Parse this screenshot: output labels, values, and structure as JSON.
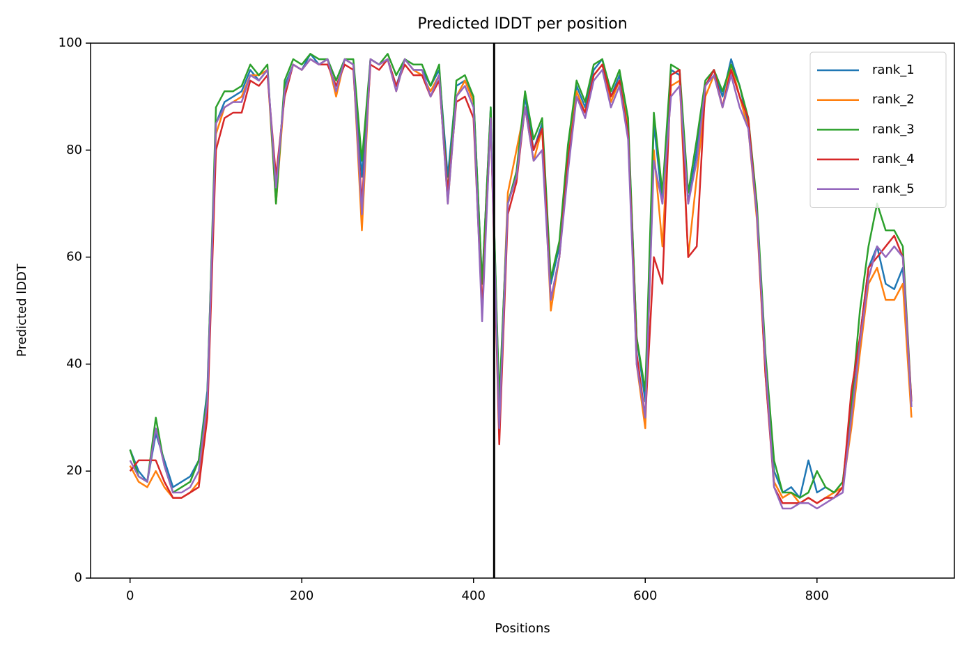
{
  "chart_data": {
    "type": "line",
    "title": "Predicted lDDT per position",
    "xlabel": "Positions",
    "ylabel": "Predicted lDDT",
    "x": [
      0,
      10,
      20,
      30,
      40,
      50,
      60,
      70,
      80,
      90,
      100,
      110,
      120,
      130,
      140,
      150,
      160,
      170,
      180,
      190,
      200,
      210,
      220,
      230,
      240,
      250,
      260,
      270,
      280,
      290,
      300,
      310,
      320,
      330,
      340,
      350,
      360,
      370,
      380,
      390,
      400,
      410,
      420,
      430,
      440,
      450,
      460,
      470,
      480,
      490,
      500,
      510,
      520,
      530,
      540,
      550,
      560,
      570,
      580,
      590,
      600,
      610,
      620,
      630,
      640,
      650,
      660,
      670,
      680,
      690,
      700,
      710,
      720,
      730,
      740,
      750,
      760,
      770,
      780,
      790,
      800,
      810,
      820,
      830,
      840,
      850,
      860,
      870,
      880,
      890,
      900,
      910
    ],
    "series": [
      {
        "name": "rank_1",
        "color": "#1f77b4",
        "values": [
          24,
          20,
          18,
          27,
          22,
          17,
          18,
          19,
          22,
          35,
          85,
          89,
          90,
          91,
          95,
          93,
          95,
          72,
          92,
          96,
          95,
          98,
          96,
          97,
          93,
          97,
          96,
          75,
          97,
          96,
          97,
          92,
          97,
          95,
          95,
          92,
          95,
          75,
          92,
          93,
          90,
          55,
          88,
          32,
          70,
          75,
          90,
          80,
          85,
          55,
          62,
          80,
          92,
          88,
          95,
          97,
          90,
          94,
          85,
          45,
          33,
          85,
          70,
          95,
          94,
          70,
          80,
          92,
          95,
          90,
          97,
          92,
          85,
          68,
          40,
          20,
          16,
          17,
          15,
          22,
          16,
          17,
          16,
          18,
          30,
          45,
          58,
          62,
          55,
          54,
          58,
          32
        ]
      },
      {
        "name": "rank_2",
        "color": "#ff7f0e",
        "values": [
          21,
          18,
          17,
          20,
          17,
          15,
          15,
          16,
          18,
          32,
          83,
          88,
          89,
          90,
          94,
          94,
          95,
          70,
          91,
          96,
          95,
          97,
          96,
          97,
          90,
          97,
          96,
          65,
          97,
          96,
          97,
          91,
          97,
          95,
          94,
          91,
          94,
          70,
          90,
          93,
          89,
          50,
          86,
          30,
          72,
          80,
          88,
          78,
          84,
          50,
          60,
          78,
          91,
          87,
          94,
          96,
          89,
          93,
          84,
          40,
          28,
          80,
          62,
          92,
          93,
          60,
          75,
          90,
          94,
          88,
          96,
          90,
          84,
          67,
          38,
          18,
          15,
          16,
          14,
          15,
          14,
          15,
          16,
          17,
          28,
          42,
          55,
          58,
          52,
          52,
          55,
          30
        ]
      },
      {
        "name": "rank_3",
        "color": "#2ca02c",
        "values": [
          24,
          19,
          18,
          30,
          21,
          16,
          17,
          18,
          22,
          34,
          88,
          91,
          91,
          92,
          96,
          94,
          96,
          70,
          93,
          97,
          96,
          98,
          97,
          97,
          93,
          97,
          97,
          78,
          97,
          96,
          98,
          94,
          97,
          96,
          96,
          92,
          96,
          72,
          93,
          94,
          90,
          55,
          88,
          33,
          70,
          76,
          91,
          82,
          86,
          56,
          63,
          81,
          93,
          89,
          96,
          97,
          91,
          95,
          86,
          45,
          35,
          87,
          72,
          96,
          95,
          72,
          82,
          93,
          95,
          91,
          96,
          92,
          86,
          70,
          42,
          22,
          16,
          16,
          15,
          16,
          20,
          17,
          16,
          18,
          32,
          50,
          62,
          70,
          65,
          65,
          62,
          33
        ]
      },
      {
        "name": "rank_4",
        "color": "#d62728",
        "values": [
          20,
          22,
          22,
          22,
          18,
          15,
          15,
          16,
          17,
          30,
          80,
          86,
          87,
          87,
          93,
          92,
          94,
          75,
          90,
          96,
          95,
          97,
          96,
          96,
          92,
          96,
          95,
          70,
          96,
          95,
          97,
          92,
          96,
          94,
          94,
          90,
          93,
          72,
          89,
          90,
          86,
          50,
          86,
          25,
          68,
          74,
          88,
          80,
          84,
          52,
          60,
          78,
          90,
          87,
          94,
          96,
          90,
          93,
          83,
          42,
          30,
          60,
          55,
          94,
          95,
          60,
          62,
          92,
          95,
          88,
          95,
          90,
          86,
          68,
          38,
          17,
          14,
          14,
          14,
          15,
          14,
          15,
          15,
          17,
          35,
          45,
          58,
          60,
          62,
          64,
          60,
          33
        ]
      },
      {
        "name": "rank_5",
        "color": "#9467bd",
        "values": [
          22,
          19,
          18,
          28,
          21,
          16,
          16,
          17,
          20,
          33,
          85,
          88,
          89,
          89,
          94,
          93,
          95,
          73,
          91,
          96,
          95,
          97,
          96,
          97,
          91,
          97,
          96,
          68,
          97,
          96,
          97,
          91,
          97,
          95,
          95,
          90,
          94,
          70,
          90,
          92,
          88,
          48,
          86,
          28,
          70,
          75,
          88,
          78,
          80,
          52,
          60,
          76,
          90,
          86,
          93,
          95,
          88,
          92,
          82,
          40,
          30,
          78,
          70,
          90,
          92,
          70,
          78,
          92,
          94,
          88,
          94,
          88,
          84,
          68,
          40,
          17,
          13,
          13,
          14,
          14,
          13,
          14,
          15,
          16,
          30,
          44,
          56,
          62,
          60,
          62,
          60,
          32
        ]
      }
    ],
    "vlines": [
      424
    ],
    "vline_color": "#000000",
    "xlim": [
      -46,
      960
    ],
    "ylim": [
      0,
      100
    ],
    "xticks": [
      0,
      200,
      400,
      600,
      800
    ],
    "yticks": [
      0,
      20,
      40,
      60,
      80,
      100
    ],
    "legend": "upper right"
  }
}
